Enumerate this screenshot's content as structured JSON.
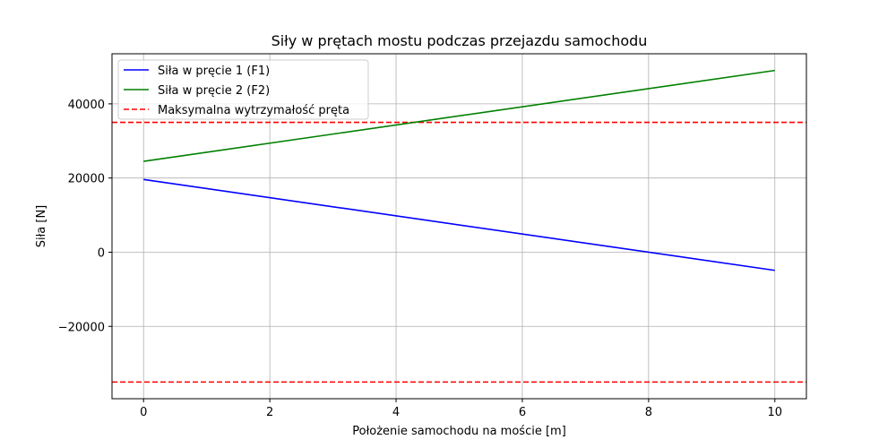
{
  "chart_data": {
    "type": "line",
    "title": "Siły w prętach mostu podczas przejazdu samochodu",
    "xlabel": "Położenie samochodu na moście [m]",
    "ylabel": "Siła [N]",
    "xlim": [
      -0.5,
      10.5
    ],
    "ylim": [
      -39500,
      53500
    ],
    "xticks": [
      0,
      2,
      4,
      6,
      8,
      10
    ],
    "xtick_labels": [
      "0",
      "2",
      "4",
      "6",
      "8",
      "10"
    ],
    "yticks": [
      -20000,
      0,
      20000,
      40000
    ],
    "ytick_labels": [
      "−20000",
      "0",
      "20000",
      "40000"
    ],
    "grid": true,
    "legend_position": "top-left",
    "series": [
      {
        "name": "Siła w pręcie 1 (F1)",
        "color": "#0000ff",
        "style": "solid",
        "x": [
          0,
          10
        ],
        "y": [
          19600,
          -4900
        ]
      },
      {
        "name": "Siła w pręcie 2 (F2)",
        "color": "#008000",
        "style": "solid",
        "x": [
          0,
          10
        ],
        "y": [
          24500,
          49000
        ]
      }
    ],
    "hlines": [
      {
        "name": "Maksymalna wytrzymałość pręta",
        "color": "#ff0000",
        "style": "dashed",
        "y": 35000,
        "legend": true
      },
      {
        "name": "",
        "color": "#ff0000",
        "style": "dashed",
        "y": -35000,
        "legend": false
      }
    ]
  }
}
